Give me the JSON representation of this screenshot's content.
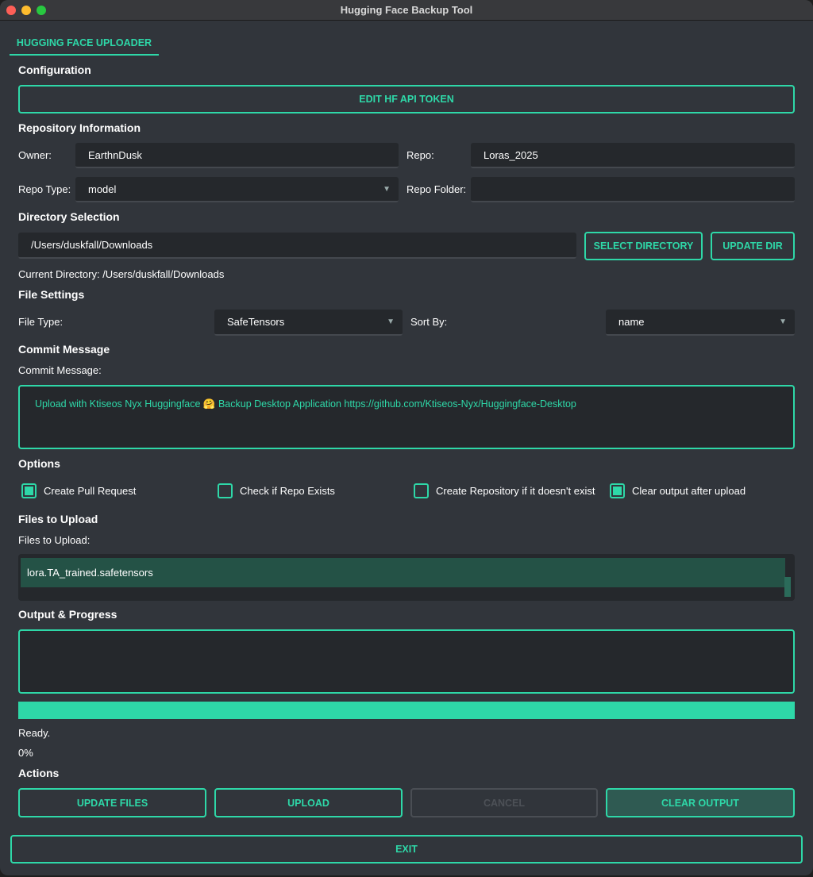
{
  "window": {
    "title": "Hugging Face Backup Tool"
  },
  "tab": {
    "label": "HUGGING FACE UPLOADER"
  },
  "config": {
    "heading": "Configuration",
    "edit_token": "EDIT HF API TOKEN"
  },
  "repo": {
    "heading": "Repository Information",
    "owner_label": "Owner:",
    "owner_value": "EarthnDusk",
    "repo_label": "Repo:",
    "repo_value": "Loras_2025",
    "type_label": "Repo Type:",
    "type_value": "model",
    "folder_label": "Repo Folder:",
    "folder_value": ""
  },
  "directory": {
    "heading": "Directory Selection",
    "path_value": "/Users/duskfall/Downloads",
    "select_button": "SELECT DIRECTORY",
    "update_button": "UPDATE DIR",
    "current": "Current Directory: /Users/duskfall/Downloads"
  },
  "file_settings": {
    "heading": "File Settings",
    "type_label": "File Type:",
    "type_value": "SafeTensors",
    "sort_label": "Sort By:",
    "sort_value": "name"
  },
  "commit": {
    "heading": "Commit Message",
    "label": "Commit Message:",
    "value": "Upload with Ktiseos Nyx Huggingface 🤗 Backup Desktop Application https://github.com/Ktiseos-Nyx/Huggingface-Desktop"
  },
  "options": {
    "heading": "Options",
    "items": [
      {
        "label": "Create Pull Request",
        "checked": true
      },
      {
        "label": "Check if Repo Exists",
        "checked": false
      },
      {
        "label": "Create Repository if it doesn't exist",
        "checked": false
      },
      {
        "label": "Clear output after upload",
        "checked": true
      }
    ]
  },
  "files": {
    "heading": "Files to Upload",
    "label": "Files to Upload:",
    "items": [
      "lora.TA_trained.safetensors"
    ]
  },
  "output": {
    "heading": "Output & Progress",
    "text": "",
    "status": "Ready.",
    "percent": "0%"
  },
  "actions": {
    "heading": "Actions",
    "update_files": "UPDATE FILES",
    "upload": "UPLOAD",
    "cancel": "CANCEL",
    "clear_output": "CLEAR OUTPUT",
    "exit": "EXIT"
  },
  "colors": {
    "accent": "#2ed8a8",
    "background": "#31353b",
    "input": "#25282c",
    "selected": "#245246"
  }
}
